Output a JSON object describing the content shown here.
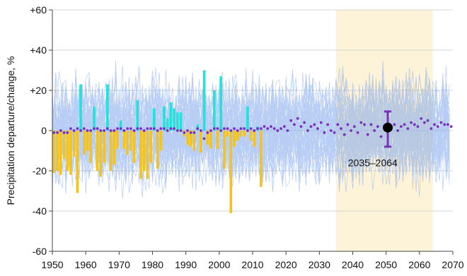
{
  "chart_data": {
    "type": "bar",
    "title": "",
    "xlabel": "",
    "ylabel": "Precipitation departure/change, %",
    "xlim": [
      1950,
      2070
    ],
    "ylim": [
      -60,
      60
    ],
    "x_ticks": [
      1950,
      1960,
      1970,
      1980,
      1990,
      2000,
      2010,
      2020,
      2030,
      2040,
      2050,
      2060,
      2070
    ],
    "y_ticks": [
      -60,
      -40,
      -20,
      0,
      20,
      40,
      60
    ],
    "y_tick_labels": [
      "-60",
      "-40",
      "-20",
      "0",
      "+20",
      "+40",
      "+60"
    ],
    "grid": "horizontal",
    "shaded_period": {
      "from": 2035,
      "to": 2064,
      "color": "#fdf3d8"
    },
    "annotation": {
      "text": "2035–2064",
      "x": 2046,
      "y": -16
    },
    "projection_range": {
      "x": 2050.5,
      "mean": 1.5,
      "low": -8,
      "high": 9.5,
      "color": "#7b2fbf"
    },
    "observed_departures": {
      "positive_color": "#21e3dc",
      "negative_color": "#f3c320",
      "years": [
        1950,
        1951,
        1952,
        1953,
        1954,
        1955,
        1956,
        1957,
        1958,
        1959,
        1960,
        1961,
        1962,
        1963,
        1964,
        1965,
        1966,
        1967,
        1968,
        1969,
        1970,
        1971,
        1972,
        1973,
        1974,
        1975,
        1976,
        1977,
        1978,
        1979,
        1980,
        1981,
        1982,
        1983,
        1984,
        1985,
        1986,
        1987,
        1988,
        1989,
        1990,
        1991,
        1992,
        1993,
        1994,
        1995,
        1996,
        1997,
        1998,
        1999,
        2000,
        2001,
        2002,
        2003,
        2004,
        2005,
        2006,
        2007,
        2008,
        2009,
        2010,
        2011,
        2012
      ],
      "values": [
        -21,
        -20,
        -22,
        -14,
        -20,
        -22,
        -13,
        -31,
        23,
        -12,
        -10,
        -16,
        12,
        -20,
        -23,
        -16,
        23,
        -20,
        -17,
        -9,
        5,
        -9,
        -12,
        -10,
        -16,
        15,
        -24,
        -20,
        -24,
        -16,
        11,
        -19,
        -10,
        12,
        6,
        14,
        11,
        9,
        9,
        -3,
        -7,
        -8,
        -10,
        3,
        -11,
        30,
        -7,
        -9,
        20,
        -9,
        27,
        -19,
        -3,
        -41,
        -8,
        -5,
        -3,
        -3,
        12,
        -5,
        -8,
        2,
        -28
      ]
    },
    "series": [
      {
        "name": "",
        "color": "#7b2fbf",
        "x": [
          1950,
          1951,
          1952,
          1953,
          1954,
          1955,
          1956,
          1957,
          1958,
          1959,
          1960,
          1961,
          1962,
          1963,
          1964,
          1965,
          1966,
          1967,
          1968,
          1969,
          1970,
          1971,
          1972,
          1973,
          1974,
          1975,
          1976,
          1977,
          1978,
          1979,
          1980,
          1981,
          1982,
          1983,
          1984,
          1985,
          1986,
          1987,
          1988,
          1989,
          1990,
          1991,
          1992,
          1993,
          1994,
          1995,
          1996,
          1997,
          1998,
          1999,
          2000,
          2001,
          2002,
          2003,
          2004,
          2005,
          2006,
          2007,
          2008,
          2009,
          2010,
          2011,
          2012,
          2013,
          2014,
          2015,
          2016,
          2017,
          2018,
          2019,
          2020,
          2021,
          2022,
          2023,
          2024,
          2025,
          2026,
          2027,
          2028,
          2029,
          2030,
          2031,
          2032,
          2033,
          2034,
          2035,
          2036,
          2037,
          2038,
          2039,
          2040,
          2041,
          2042,
          2043,
          2044,
          2045,
          2046,
          2047,
          2048,
          2049,
          2050,
          2051,
          2052,
          2053,
          2054,
          2055,
          2056,
          2057,
          2058,
          2059,
          2060,
          2061,
          2062,
          2063,
          2064,
          2065,
          2066,
          2067,
          2068,
          2069
        ],
        "values": [
          -1,
          -1,
          0,
          -1,
          -1,
          1,
          0,
          1,
          0,
          1,
          0,
          0,
          1,
          1,
          0,
          0,
          1,
          0,
          0,
          1,
          1,
          0,
          1,
          1,
          0,
          1,
          1,
          0,
          1,
          1,
          1,
          0,
          1,
          1,
          0,
          1,
          1,
          0,
          0,
          -1,
          0,
          -1,
          -1,
          1,
          0,
          -4,
          -1,
          0,
          1,
          1,
          0,
          1,
          1,
          0,
          1,
          0,
          1,
          1,
          0,
          1,
          0,
          1,
          1,
          2,
          1,
          2,
          1,
          0,
          1,
          2,
          0,
          5,
          3,
          6,
          2,
          4,
          0,
          2,
          3,
          1,
          4,
          -1,
          3,
          0,
          -1,
          3,
          1,
          -2,
          3,
          0,
          2,
          -1,
          4,
          3,
          -2,
          3,
          0,
          2,
          -3,
          1,
          2,
          2,
          3,
          0,
          2,
          3,
          1,
          4,
          3,
          2,
          6,
          4,
          5,
          1,
          3,
          2,
          4,
          3,
          3,
          2
        ]
      }
    ],
    "ensemble": {
      "color": "#7fa6ec",
      "members": 50,
      "from": 1950,
      "to": 2069
    }
  }
}
